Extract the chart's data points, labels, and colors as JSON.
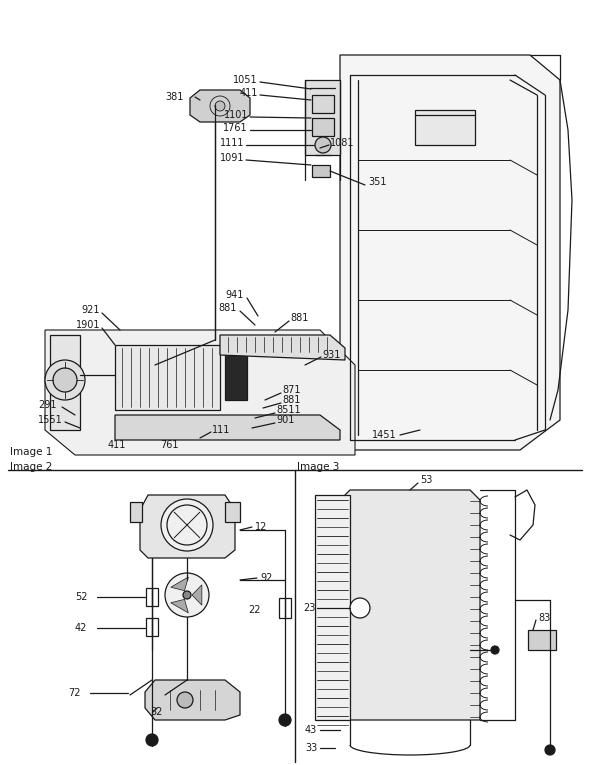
{
  "bg_color": "#ffffff",
  "lc": "#1a1a1a",
  "tc": "#1a1a1a",
  "image1_label": "Image 1",
  "image2_label": "Image 2",
  "image3_label": "Image 3",
  "figsize": [
    5.9,
    7.65
  ],
  "dpi": 100
}
